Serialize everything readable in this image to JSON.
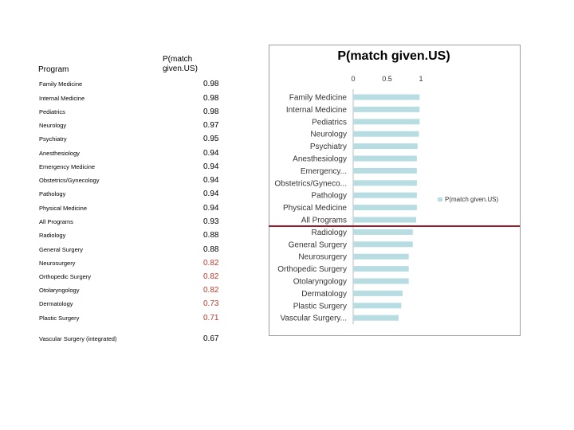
{
  "table": {
    "header_program": "Program",
    "header_prob": "P(match given.US)",
    "rows": [
      {
        "name": "Family Medicine",
        "value": "0.98",
        "red": false
      },
      {
        "name": "Internal Medicine",
        "value": "0.98",
        "red": false
      },
      {
        "name": "Pediatrics",
        "value": "0.98",
        "red": false
      },
      {
        "name": "Neurology",
        "value": "0.97",
        "red": false
      },
      {
        "name": "Psychiatry",
        "value": "0.95",
        "red": false
      },
      {
        "name": "Anesthesiology",
        "value": "0.94",
        "red": false
      },
      {
        "name": "Emergency Medicine",
        "value": "0.94",
        "red": false
      },
      {
        "name": "Obstetrics/Gynecology",
        "value": "0.94",
        "red": false
      },
      {
        "name": "Pathology",
        "value": "0.94",
        "red": false
      },
      {
        "name": "Physical Medicine",
        "value": "0.94",
        "red": false
      },
      {
        "name": "All Programs",
        "value": "0.93",
        "red": false
      },
      {
        "name": "Radiology",
        "value": "0.88",
        "red": false
      },
      {
        "name": "General Surgery",
        "value": "0.88",
        "red": false
      },
      {
        "name": "Neurosurgery",
        "value": "0.82",
        "red": true
      },
      {
        "name": "Orthopedic Surgery",
        "value": "0.82",
        "red": true
      },
      {
        "name": "Otolaryngology",
        "value": "0.82",
        "red": true
      },
      {
        "name": "Dermatology",
        "value": "0.73",
        "red": true
      },
      {
        "name": "Plastic Surgery",
        "value": "0.71",
        "red": true
      },
      {
        "name": "Vascular Surgery (integrated)",
        "value": "0.67",
        "red": false
      }
    ]
  },
  "chart_data": {
    "type": "bar",
    "orientation": "horizontal",
    "title": "P(match given.US)",
    "categories": [
      "Family Medicine",
      "Internal Medicine",
      "Pediatrics",
      "Neurology",
      "Psychiatry",
      "Anesthesiology",
      "Emergency...",
      "Obstetrics/Gyneco...",
      "Pathology",
      "Physical Medicine",
      "All Programs",
      "Radiology",
      "General Surgery",
      "Neurosurgery",
      "Orthopedic Surgery",
      "Otolaryngology",
      "Dermatology",
      "Plastic Surgery",
      "Vascular Surgery..."
    ],
    "series": [
      {
        "name": "P(match given.US)",
        "values": [
          0.98,
          0.98,
          0.98,
          0.97,
          0.95,
          0.94,
          0.94,
          0.94,
          0.94,
          0.94,
          0.93,
          0.88,
          0.88,
          0.82,
          0.82,
          0.82,
          0.73,
          0.71,
          0.67
        ]
      }
    ],
    "xlim": [
      0,
      1
    ],
    "xticks": [
      "0",
      "0.5",
      "1"
    ],
    "legend_position": "right",
    "grid": false,
    "bar_color": "#b7dde3",
    "divider_color": "#9b1b2a",
    "divider_after_category": "All Programs"
  }
}
